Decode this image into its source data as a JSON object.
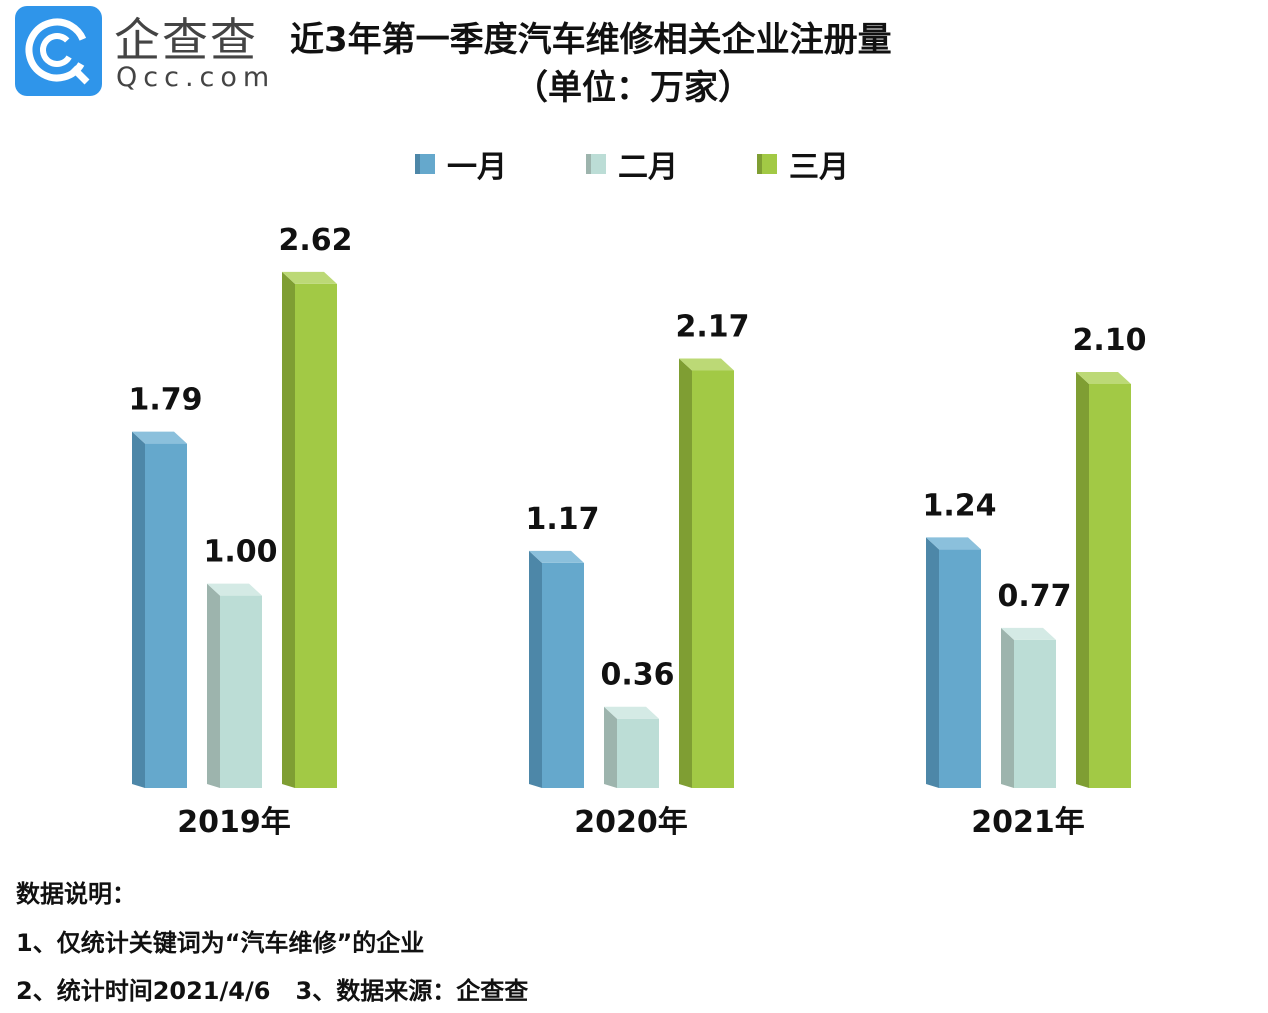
{
  "logo": {
    "cn": "企查查",
    "en": "Qcc.com"
  },
  "chart_data": {
    "type": "bar",
    "title": "近3年第一季度汽车维修相关企业注册量",
    "subtitle": "（单位：万家）",
    "categories": [
      "2019年",
      "2020年",
      "2021年"
    ],
    "series": [
      {
        "name": "一月",
        "color": "#65a8cc",
        "side": "#4d87a8",
        "top": "#8bc0dc",
        "values": [
          1.79,
          1.17,
          1.24
        ]
      },
      {
        "name": "二月",
        "color": "#bcddd6",
        "side": "#9db4ad",
        "top": "#d4eae5",
        "values": [
          1.0,
          0.36,
          0.77
        ]
      },
      {
        "name": "三月",
        "color": "#a2c945",
        "side": "#7f9e33",
        "top": "#bcd976",
        "values": [
          2.62,
          2.17,
          2.1
        ]
      }
    ],
    "legend_position": "top",
    "grid": false
  },
  "notes": [
    "数据说明：",
    "1、仅统计关键词为“汽车维修”的企业",
    "2、统计时间2021/4/6   3、数据来源：企查查"
  ]
}
